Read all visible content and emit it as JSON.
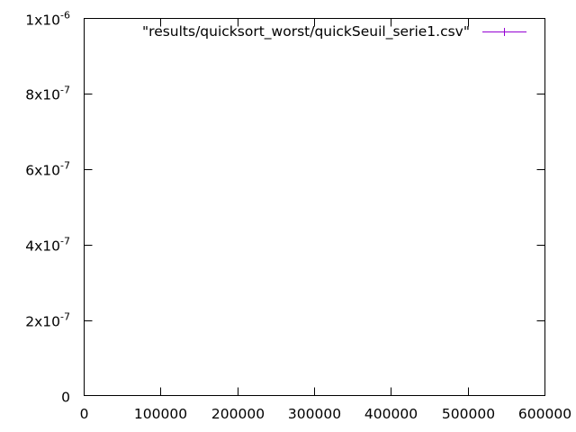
{
  "chart_data": {
    "type": "scatter",
    "title": "",
    "xlabel": "",
    "ylabel": "",
    "xlim": [
      0,
      600000
    ],
    "ylim": [
      0,
      1e-06
    ],
    "x_ticks": [
      {
        "value": 0,
        "label": "0"
      },
      {
        "value": 100000,
        "label": "100000"
      },
      {
        "value": 200000,
        "label": "200000"
      },
      {
        "value": 300000,
        "label": "300000"
      },
      {
        "value": 400000,
        "label": "400000"
      },
      {
        "value": 500000,
        "label": "500000"
      },
      {
        "value": 600000,
        "label": "600000"
      }
    ],
    "y_ticks": [
      {
        "value": 0,
        "mantissa": "0",
        "exponent": ""
      },
      {
        "value": 2e-07,
        "mantissa": "2x10",
        "exponent": "-7"
      },
      {
        "value": 4e-07,
        "mantissa": "4x10",
        "exponent": "-7"
      },
      {
        "value": 6e-07,
        "mantissa": "6x10",
        "exponent": "-7"
      },
      {
        "value": 8e-07,
        "mantissa": "8x10",
        "exponent": "-7"
      },
      {
        "value": 1e-06,
        "mantissa": "1x10",
        "exponent": "-6"
      }
    ],
    "grid": false,
    "legend_position": "top-right",
    "series": [
      {
        "name": "\"results/quicksort_worst/quickSeuil_serie1.csv\"",
        "color": "#9400d3",
        "style": "errorbars",
        "points": []
      }
    ]
  }
}
